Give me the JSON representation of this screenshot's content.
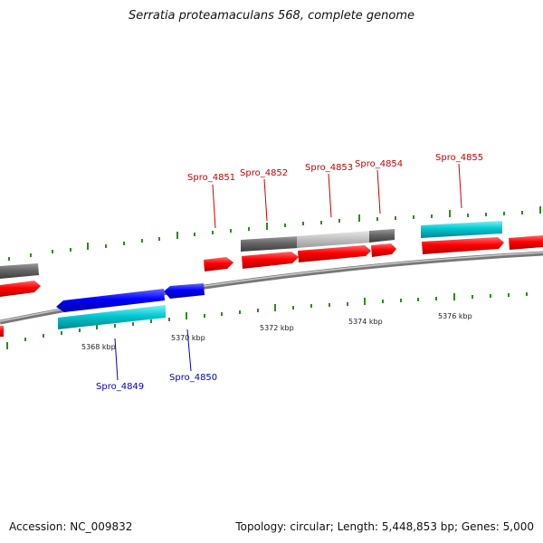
{
  "title": "Serratia proteamaculans 568, complete genome",
  "accession": "Accession: NC_009832",
  "stats": "Topology: circular; Length: 5,448,853 bp; Genes: 5,000",
  "colors": {
    "forward_gene": "#ff0000",
    "reverse_gene": "#0000ff",
    "cyan_feature": "#00c8d2",
    "gray_feature": "#666666",
    "light_gray_feature": "#c8c8c8",
    "tick": "#2e8b1e",
    "backbone": "#888888"
  },
  "tick_labels": [
    {
      "text": "5368 kbp"
    },
    {
      "text": "5370 kbp"
    },
    {
      "text": "5372 kbp"
    },
    {
      "text": "5374 kbp"
    },
    {
      "text": "5376 kbp"
    }
  ],
  "gene_labels": [
    {
      "name": "Spro_4849",
      "strand": "reverse"
    },
    {
      "name": "Spro_4850",
      "strand": "reverse"
    },
    {
      "name": "Spro_4851",
      "strand": "forward"
    },
    {
      "name": "Spro_4852",
      "strand": "forward"
    },
    {
      "name": "Spro_4853",
      "strand": "forward"
    },
    {
      "name": "Spro_4854",
      "strand": "forward"
    },
    {
      "name": "Spro_4855",
      "strand": "forward"
    }
  ]
}
